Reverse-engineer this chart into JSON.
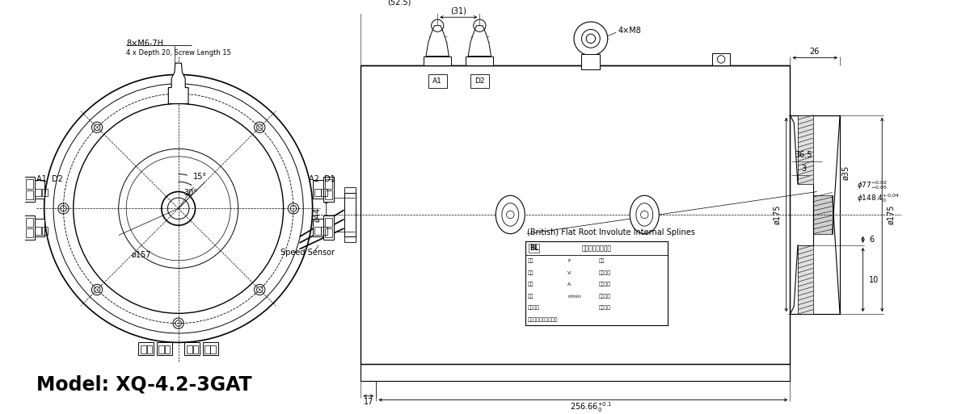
{
  "bg_color": "#ffffff",
  "model_text": "Model: XQ-4.2-3GAT",
  "annotations": {
    "thread_label": "8×M6-7H",
    "thread_sub": "4 x Depth 20, Screw Length 15",
    "dia157": "ø157",
    "angle15": "15°",
    "angle30": "30°",
    "A1D2": "A1  D2",
    "A2D1": "A2  D1",
    "speed_sensor": "Speed Sensor",
    "dia44": "ø44",
    "dim525": "(52.5)",
    "dim31": "(31)",
    "bolt_label": "4×M8",
    "dim26": "26",
    "dim10": "10",
    "dim6": "6",
    "dim175_left": "ø175",
    "dim35": "ø35",
    "dim175_right": "ø175",
    "dim3": "3",
    "dim365": "36.5",
    "dim17": "17",
    "dim25666": "256.66",
    "A1_label": "A1",
    "D2_label": "D2",
    "splines_text": "(British) Flat Root Involute Internal Splines"
  }
}
